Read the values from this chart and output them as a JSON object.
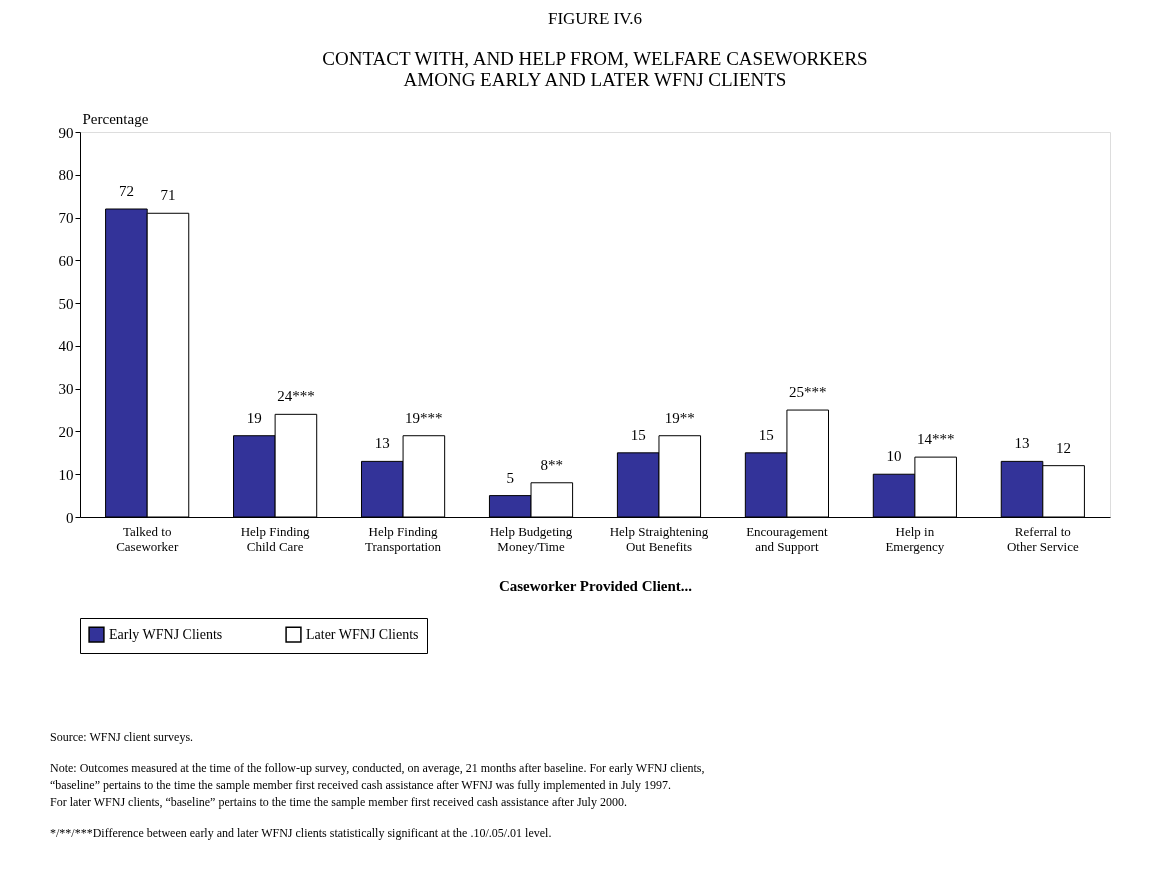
{
  "chart_data": {
    "type": "bar",
    "title": "FIGURE IV.6",
    "subtitle": "CONTACT WITH, AND HELP FROM, WELFARE CASEWORKERS\nAMONG EARLY AND LATER WFNJ CLIENTS",
    "xlabel": "Caseworker Provided Client...",
    "ylabel": "Percentage",
    "categories": [
      "Talked to\nCaseworker",
      "Help Finding\nChild Care",
      "Help Finding\nTransportation",
      "Help Budgeting\nMoney/Time",
      "Help Straightening\nOut Benefits",
      "Encouragement\nand Support",
      "Help in\nEmergency",
      "Referral to\nOther Service"
    ],
    "series": [
      {
        "name": "Early WFNJ Clients",
        "color": "#333399",
        "values": [
          72,
          19,
          13,
          5,
          15,
          15,
          10,
          13
        ],
        "value_labels": [
          "72",
          "19",
          "13",
          "5",
          "15",
          "15",
          "10",
          "13"
        ]
      },
      {
        "name": "Later WFNJ Clients",
        "color": "#ffffff",
        "values": [
          71,
          24,
          19,
          8,
          19,
          25,
          14,
          12
        ],
        "value_labels": [
          "71",
          "24***",
          "19***",
          "8**",
          "19**",
          "25***",
          "14***",
          "12"
        ]
      }
    ],
    "ylim": [
      0,
      90
    ],
    "yticks": [
      0,
      10,
      20,
      30,
      40,
      50,
      60,
      70,
      80,
      90
    ],
    "grid": false,
    "legend": "bottom",
    "annotations": [
      "Source:   WFNJ client surveys.",
      "Note:     Outcomes measured at the time of the follow-up survey, conducted, on average, 21 months after baseline. For early WFNJ clients,\n              “baseline” pertains to the time the sample member first received cash assistance after WFNJ was fully implemented in July 1997.\n              For later WFNJ clients, “baseline” pertains to the time the sample member first received cash assistance after July 2000.",
      "*/**/***Difference between early and later WFNJ clients statistically significant at the .10/.05/.01 level."
    ]
  }
}
